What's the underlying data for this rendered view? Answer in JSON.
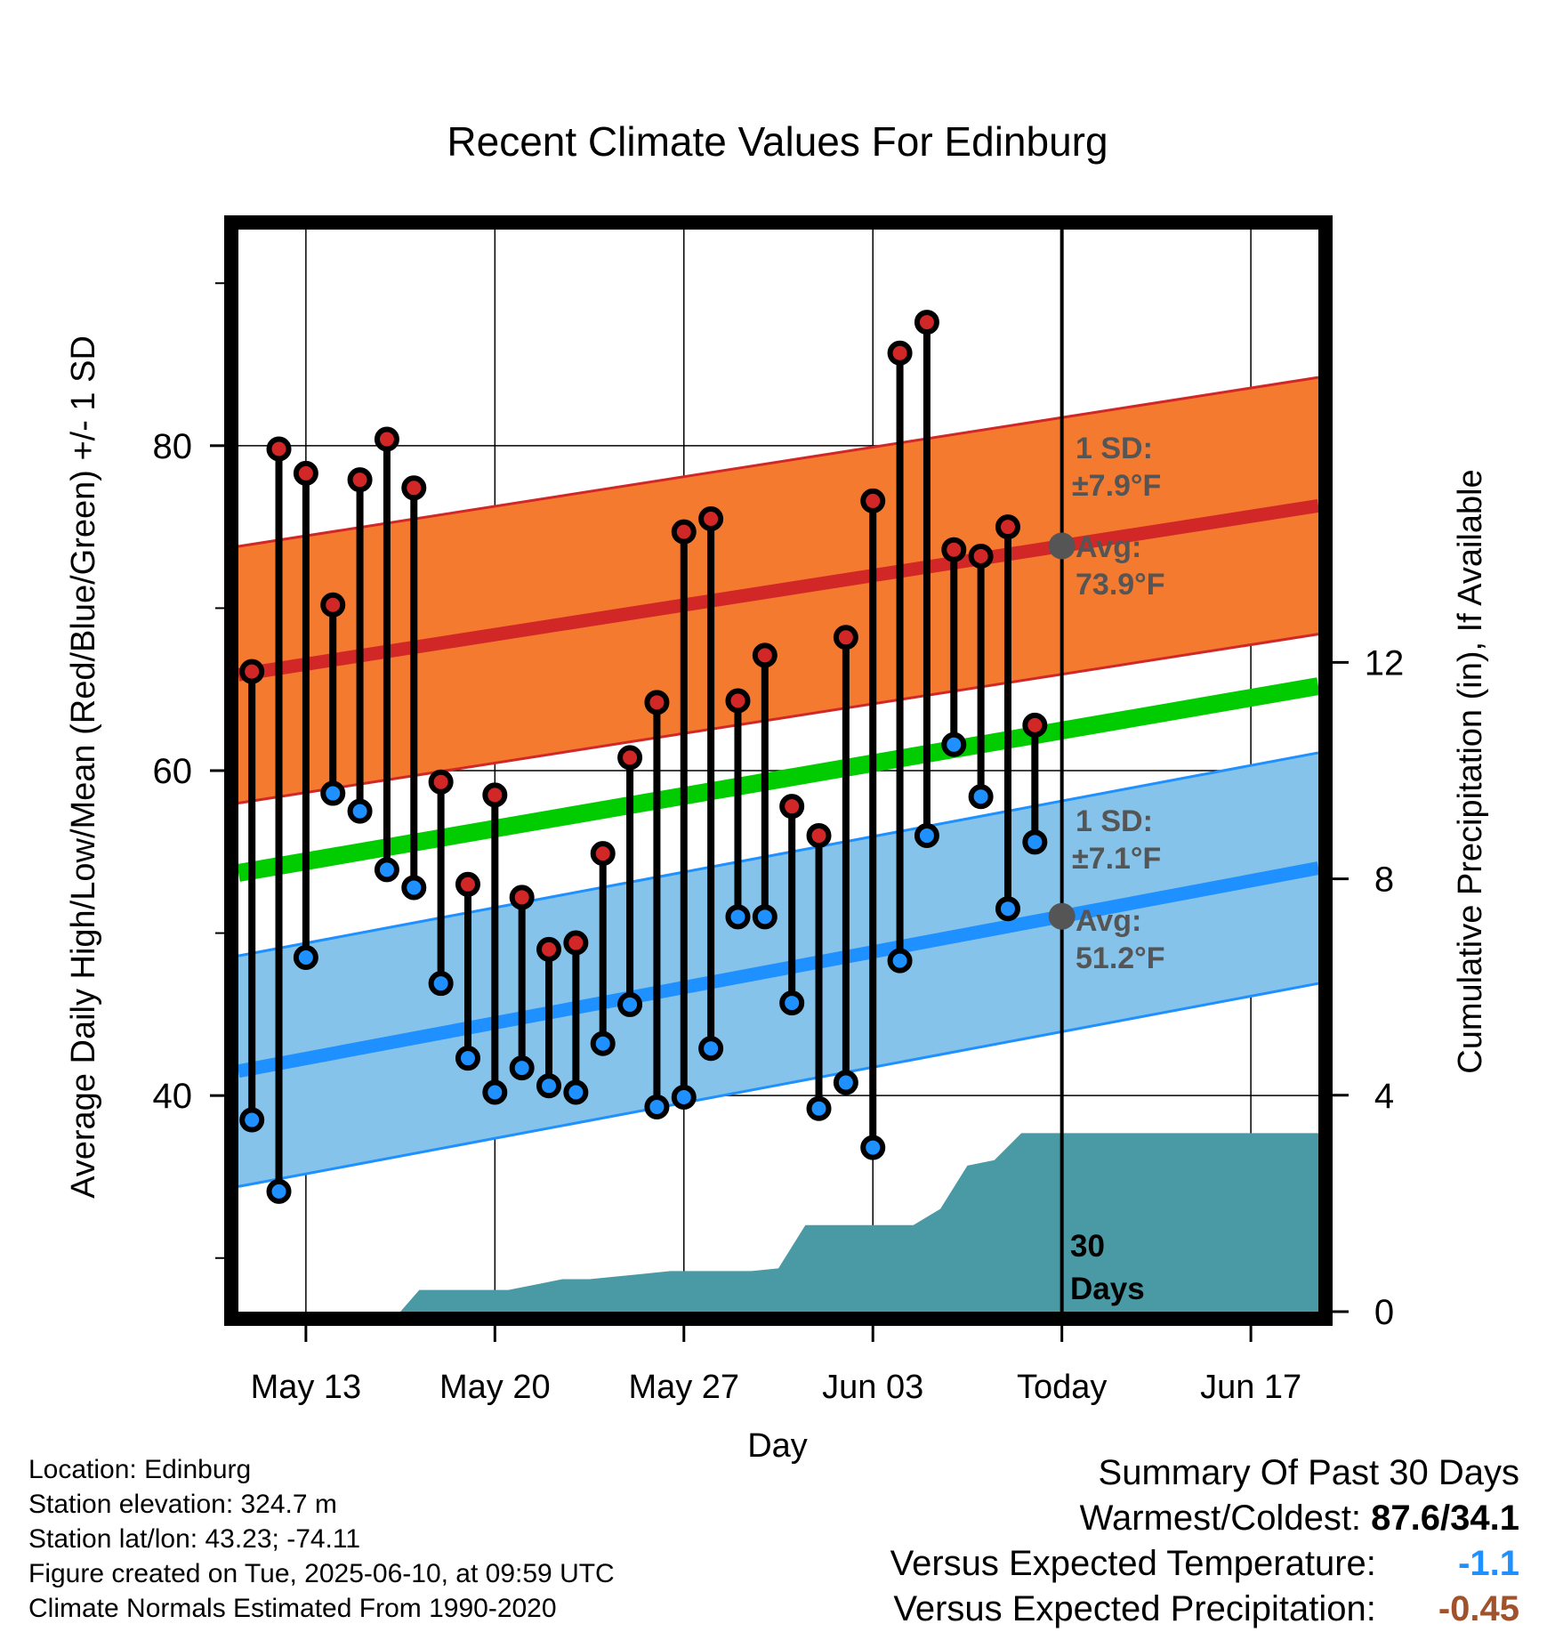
{
  "chart_data": {
    "type": "line",
    "title": "Recent Climate Values For Edinburg",
    "xlabel": "Day",
    "ylabel": "Average Daily High/Low/Mean (Red/Blue/Green) +/- 1 SD",
    "y2label": "Cumulative Precipitation (in), If Available",
    "x_ticks": [
      "May 13",
      "May 20",
      "May 27",
      "Jun 03",
      "Today",
      "Jun 17"
    ],
    "y_ticks": [
      "40",
      "60",
      "80"
    ],
    "y2_ticks": [
      "0",
      "4",
      "8",
      "12"
    ],
    "ylim": [
      26.7,
      93.3
    ],
    "y2lim": [
      0,
      20
    ],
    "x_range_days": [
      -30.5,
      9.5
    ],
    "today_label": "30 Days",
    "normals": {
      "high": {
        "start": 65.9,
        "end": 76.3,
        "sd": 7.9,
        "sd_label": "1 SD:",
        "sd_value": "±7.9°F",
        "avg_label": "Avg:",
        "avg_value": "73.9°F"
      },
      "low": {
        "start": 41.5,
        "end": 54.0,
        "sd": 7.1,
        "sd_label": "1 SD:",
        "sd_value": "±7.1°F",
        "avg_label": "Avg:",
        "avg_value": "51.2°F"
      },
      "mean": {
        "start": 53.7,
        "end": 65.2
      }
    },
    "colors": {
      "high_band": "#f47a30",
      "high_line": "#d22727",
      "high_edge": "#d22727",
      "low_band": "#85c3ea",
      "low_line": "#1e90ff",
      "low_edge": "#1e90ff",
      "mean_line": "#00cc00",
      "precip": "#4a9aa5",
      "high_marker": "#d22727",
      "low_marker": "#1e90ff",
      "annotation": "#555555"
    },
    "series": [
      {
        "name": "High",
        "x": [
          -30,
          -29,
          -28,
          -27,
          -26,
          -25,
          -24,
          -23,
          -22,
          -21,
          -20,
          -19,
          -18,
          -17,
          -16,
          -15,
          -14,
          -13,
          -12,
          -11,
          -10,
          -9,
          -8,
          -7,
          -6,
          -5,
          -4,
          -3,
          -2,
          -1
        ],
        "values": [
          66.1,
          79.8,
          78.3,
          70.2,
          77.9,
          80.4,
          77.4,
          59.3,
          53.0,
          58.5,
          52.2,
          49.0,
          49.4,
          54.9,
          60.8,
          64.2,
          74.7,
          75.5,
          64.3,
          67.1,
          57.8,
          56.0,
          68.2,
          76.6,
          85.7,
          87.6,
          73.6,
          73.2,
          75.0,
          62.8
        ]
      },
      {
        "name": "Low",
        "x": [
          -30,
          -29,
          -28,
          -27,
          -26,
          -25,
          -24,
          -23,
          -22,
          -21,
          -20,
          -19,
          -18,
          -17,
          -16,
          -15,
          -14,
          -13,
          -12,
          -11,
          -10,
          -9,
          -8,
          -7,
          -6,
          -5,
          -4,
          -3,
          -2,
          -1
        ],
        "values": [
          38.5,
          34.1,
          48.5,
          58.6,
          57.5,
          53.9,
          52.8,
          46.9,
          42.3,
          40.2,
          41.7,
          40.6,
          40.2,
          43.2,
          45.6,
          39.3,
          39.9,
          42.9,
          51.0,
          51.0,
          45.7,
          39.2,
          40.8,
          36.8,
          48.3,
          56.0,
          61.6,
          58.4,
          51.5,
          55.6
        ]
      }
    ],
    "precip": {
      "x": [
        -24.5,
        -23.8,
        -22.5,
        -21.5,
        -20.5,
        -19.5,
        -18.5,
        -17.5,
        -16.5,
        -15.5,
        -14.5,
        -13.5,
        -12.5,
        -11.5,
        -10.5,
        -9.5,
        -8.5,
        -7.5,
        -6.5,
        -5.5,
        -4.5,
        -3.5,
        -2.5,
        -1.5,
        -0.5,
        9.5
      ],
      "values": [
        0,
        0.4,
        0.4,
        0.4,
        0.4,
        0.5,
        0.6,
        0.6,
        0.65,
        0.7,
        0.75,
        0.75,
        0.75,
        0.75,
        0.8,
        1.6,
        1.6,
        1.6,
        1.6,
        1.6,
        1.9,
        2.7,
        2.8,
        3.3,
        3.3,
        3.3
      ]
    }
  },
  "footer": {
    "location": "Location: Edinburg",
    "elevation": "Station elevation: 324.7 m",
    "latlon": "Station lat/lon: 43.23; -74.11",
    "created": "Figure created on Tue, 2025-06-10, at 09:59 UTC",
    "normals": "Climate Normals Estimated From 1990-2020"
  },
  "summary": {
    "title": "Summary Of Past 30 Days",
    "warmest_label": "Warmest/Coldest:",
    "warmest_value": "87.6/34.1",
    "temp_label": "Versus Expected Temperature:",
    "temp_value": "-1.1",
    "temp_color": "#1e90ff",
    "precip_label": "Versus Expected Precipitation:",
    "precip_value": "-0.45",
    "precip_color": "#a0522d"
  }
}
